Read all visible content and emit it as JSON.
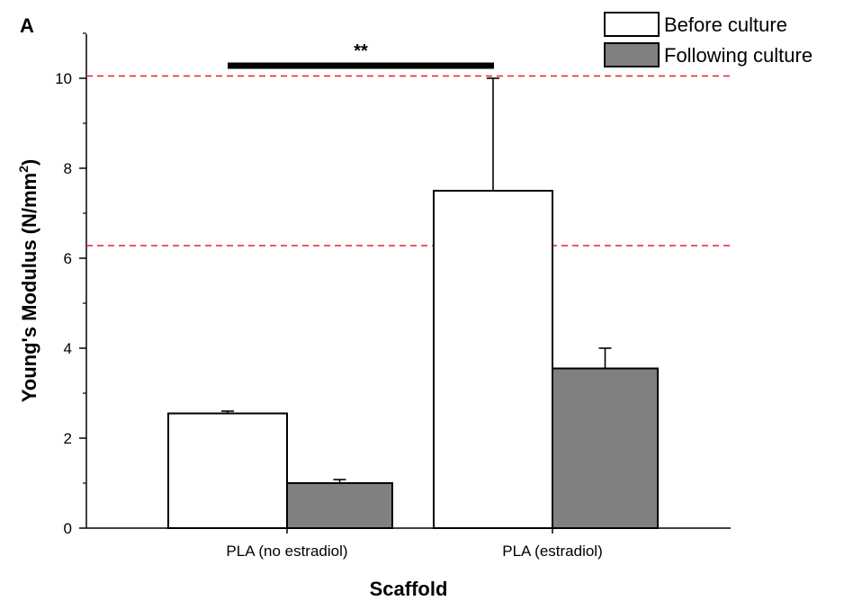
{
  "panel_label": "A",
  "chart_data": {
    "type": "bar",
    "title": "",
    "xlabel": "Scaffold",
    "ylabel_main": "Young's Modulus (N/mm",
    "ylabel_sup": "2",
    "ylabel_end": ")",
    "ylim": [
      0,
      11
    ],
    "yticks": [
      0,
      2,
      4,
      6,
      8,
      10
    ],
    "ytick_labels": [
      "0",
      "2",
      "4",
      "6",
      "8",
      "10"
    ],
    "categories": [
      "PLA (no estradiol)",
      "PLA (estradiol)"
    ],
    "series": [
      {
        "name": "Before culture",
        "values": [
          2.55,
          7.5
        ],
        "errors": [
          0.05,
          2.5
        ],
        "color": "#ffffff"
      },
      {
        "name": "Following culture",
        "values": [
          1.0,
          3.55
        ],
        "errors": [
          0.08,
          0.45
        ],
        "color": "#808080"
      }
    ],
    "reference_lines": [
      10.05,
      6.28
    ],
    "reference_line_color": "#e8202a",
    "significance": {
      "label": "**",
      "level": 10.38
    },
    "legend_position": "top-right",
    "grid": false
  }
}
